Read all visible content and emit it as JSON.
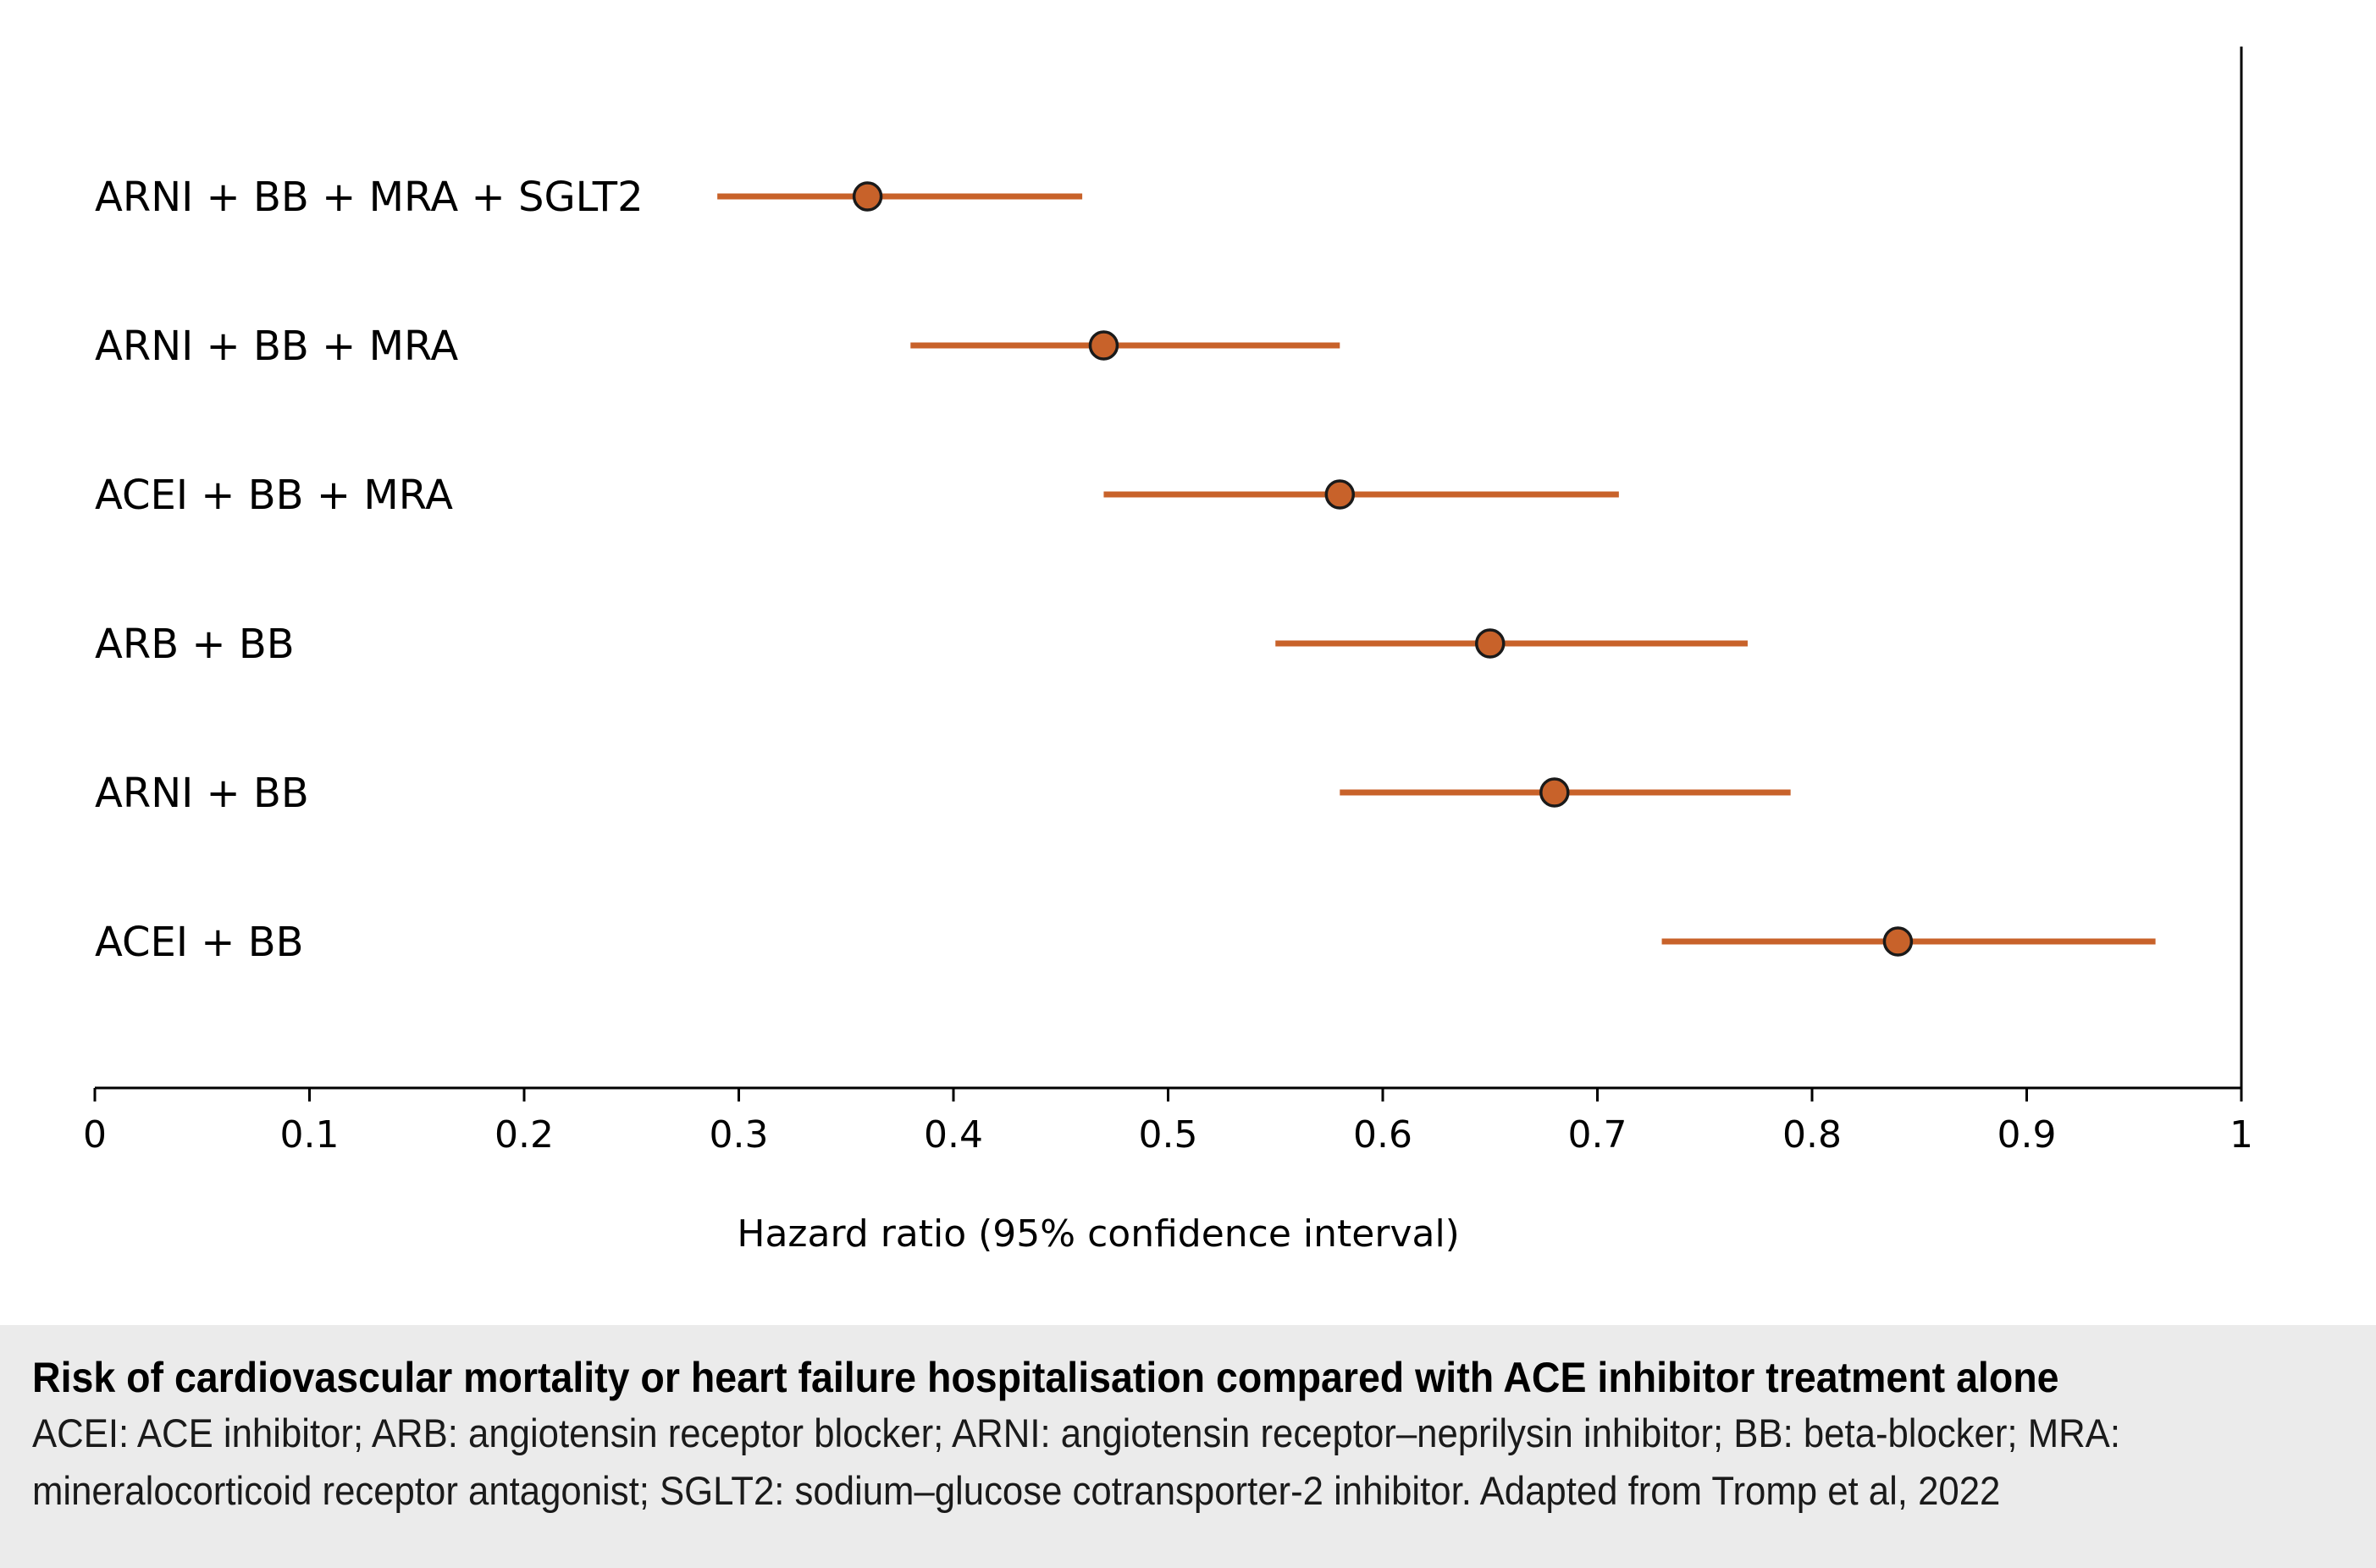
{
  "chart_data": {
    "type": "forest",
    "title": "",
    "xlabel": "Hazard ratio (95% confidence interval)",
    "ylabel": "",
    "xlim": [
      0,
      1
    ],
    "xticks": [
      "0",
      "0.1",
      "0.2",
      "0.3",
      "0.4",
      "0.5",
      "0.6",
      "0.7",
      "0.8",
      "0.9",
      "1"
    ],
    "grid": false,
    "series_color": "#c8622a",
    "points": [
      {
        "label": "ARNI + BB + MRA + SGLT2",
        "hr": 0.36,
        "lower": 0.29,
        "upper": 0.46
      },
      {
        "label": "ARNI + BB + MRA",
        "hr": 0.47,
        "lower": 0.38,
        "upper": 0.58
      },
      {
        "label": "ACEI + BB + MRA",
        "hr": 0.58,
        "lower": 0.47,
        "upper": 0.71
      },
      {
        "label": "ARB + BB",
        "hr": 0.65,
        "lower": 0.55,
        "upper": 0.77
      },
      {
        "label": "ARNI + BB",
        "hr": 0.68,
        "lower": 0.58,
        "upper": 0.79
      },
      {
        "label": "ACEI + BB",
        "hr": 0.84,
        "lower": 0.73,
        "upper": 0.96
      }
    ]
  },
  "caption": {
    "title": "Risk of cardiovascular mortality or heart failure hospitalisation compared with ACE inhibitor treatment alone",
    "body_line1": "ACEI: ACE inhibitor; ARB: angiotensin receptor blocker; ARNI: angiotensin receptor–neprilysin inhibitor; BB: beta-blocker; MRA:",
    "body_line2": "mineralocorticoid receptor antagonist; SGLT2: sodium–glucose cotransporter-2 inhibitor. Adapted from Tromp et al, 2022"
  }
}
